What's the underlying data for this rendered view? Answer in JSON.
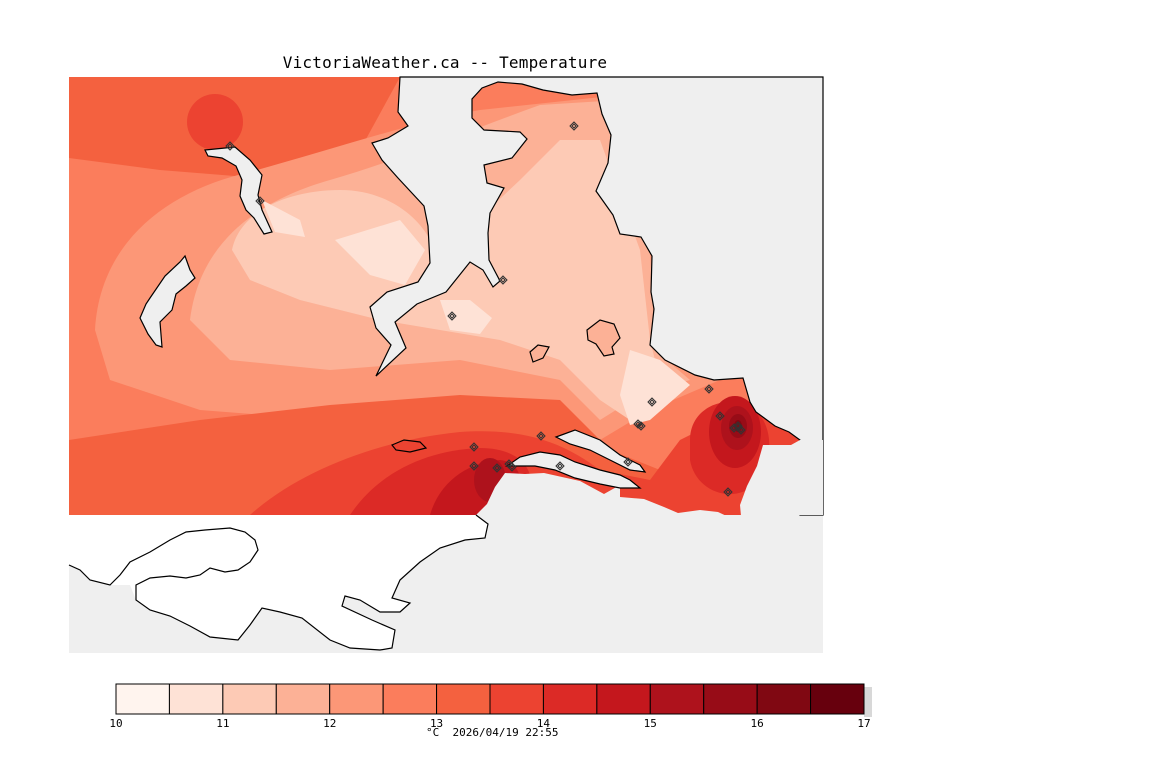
{
  "header": {
    "title": "VictoriaWeather.ca -- Temperature"
  },
  "map": {
    "variable": "Temperature",
    "colors": {
      "ocean": "#efefef",
      "land_outside_analysis": "#ffffff",
      "coastline": "#000000",
      "station_marker": "#333333"
    },
    "station_count": 22
  },
  "legend": {
    "unit": "°C",
    "timestamp": "2026/04/19 22:55",
    "min": 10,
    "max": 17,
    "step": 0.5,
    "tick_labels": [
      "10",
      "11",
      "12",
      "13",
      "14",
      "15",
      "16",
      "17"
    ],
    "bins": [
      "#fff4ee",
      "#fee2d6",
      "#fdcab5",
      "#fcb196",
      "#fc9777",
      "#fb7d5c",
      "#f4613f",
      "#ec4331",
      "#dc2a26",
      "#c4171d",
      "#ae121c",
      "#970c17",
      "#800812",
      "#67000d"
    ]
  }
}
